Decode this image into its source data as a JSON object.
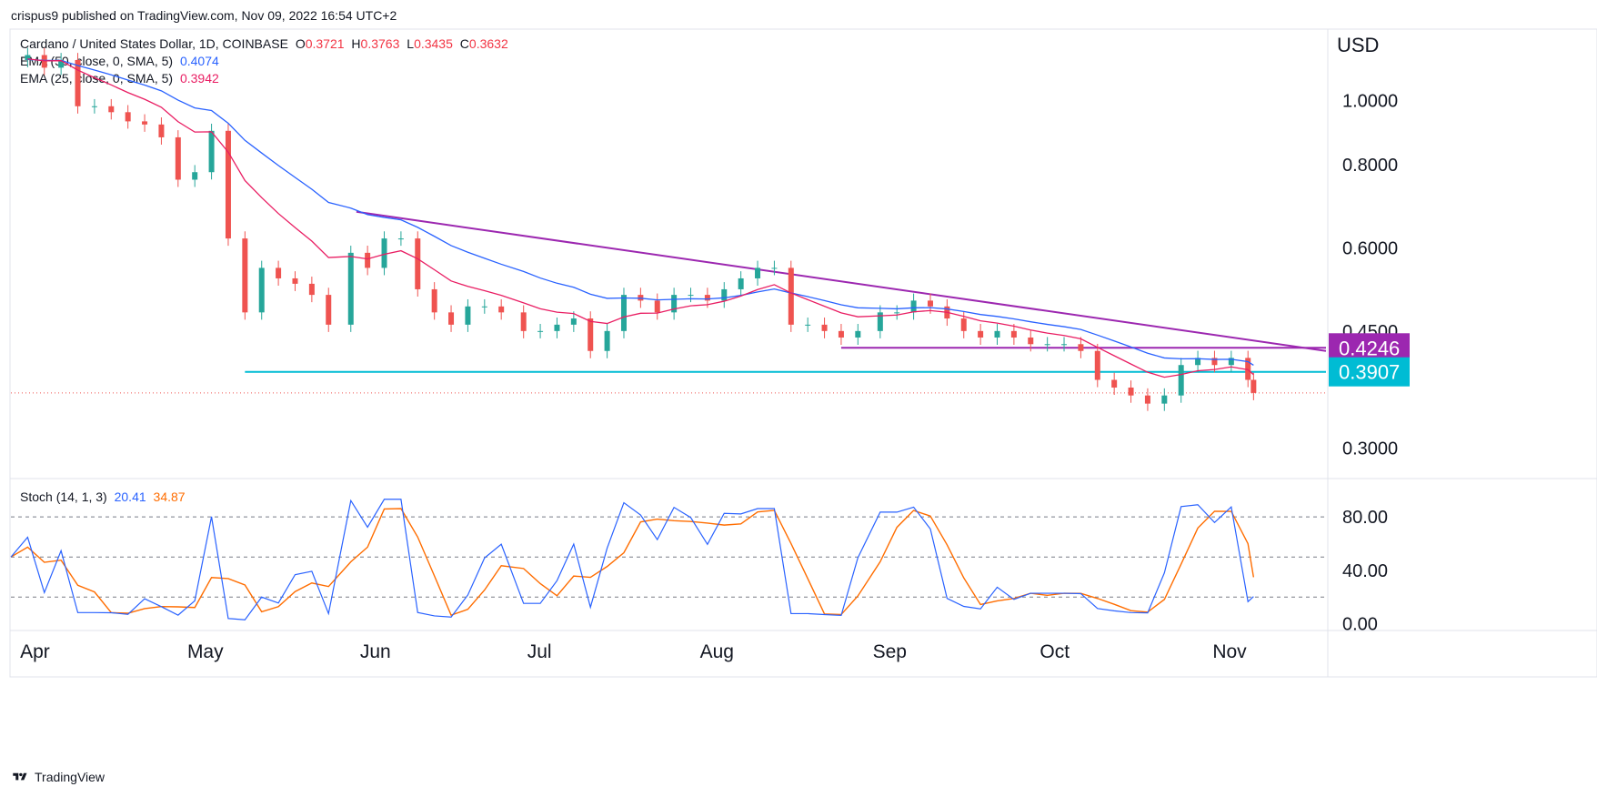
{
  "header": {
    "published": "crispus9 published on TradingView.com, Nov 09, 2022 16:54 UTC+2"
  },
  "legend": {
    "symbol": "Cardano / United States Dollar, 1D, COINBASE",
    "ohlc": {
      "o_label": "O",
      "o": "0.3721",
      "h_label": "H",
      "h": "0.3763",
      "l_label": "L",
      "l": "0.3435",
      "c_label": "C",
      "c": "0.3632"
    },
    "ema50": {
      "label": "EMA (50, close, 0, SMA, 5)",
      "value": "0.4074"
    },
    "ema25": {
      "label": "EMA (25, close, 0, SMA, 5)",
      "value": "0.3942"
    },
    "stoch": {
      "label": "Stoch (14, 1, 3)",
      "k": "20.41",
      "d": "34.87"
    }
  },
  "currency": "USD",
  "footer": {
    "brand": "TradingView"
  },
  "colors": {
    "up": "#26a69a",
    "down": "#ef5350",
    "ema50": "#2962ff",
    "ema25": "#e91e63",
    "trendline": "#9c27b0",
    "support": "#00bcd4",
    "stoch_k": "#2962ff",
    "stoch_d": "#ff6d00"
  },
  "chart_data": [
    {
      "type": "candlestick",
      "title": "Cardano / United States Dollar, 1D, COINBASE",
      "y_scale": "log",
      "ylim": [
        0.27,
        1.28
      ],
      "y_ticks": [
        {
          "label": "1.0000",
          "value": 1.0
        },
        {
          "label": "0.8000",
          "value": 0.8
        },
        {
          "label": "0.6000",
          "value": 0.6
        },
        {
          "label": "0.4500",
          "value": 0.45
        },
        {
          "label": "0.3000",
          "value": 0.3
        }
      ],
      "x_ticks": [
        "Apr",
        "May",
        "Jun",
        "Jul",
        "Aug",
        "Sep",
        "Oct",
        "Nov"
      ],
      "x_tick_dates": [
        "2022-04-01",
        "2022-05-01",
        "2022-06-01",
        "2022-07-01",
        "2022-08-01",
        "2022-09-01",
        "2022-10-01",
        "2022-11-01"
      ],
      "x_range": [
        "2022-03-31",
        "2022-11-22"
      ],
      "last_close": 0.3632,
      "price_labels": [
        {
          "label": "0.4246",
          "value": 0.4246,
          "color": "#9c27b0"
        },
        {
          "label": "0.3907",
          "value": 0.3907,
          "color": "#00bcd4"
        }
      ],
      "trendline": {
        "from": {
          "date": "2022-06-01",
          "price": 0.68
        },
        "to": {
          "date": "2022-11-22",
          "price": 0.42
        }
      },
      "horizontal_lines": [
        {
          "from": "2022-08-27",
          "to": "2022-11-22",
          "price": 0.4246,
          "color": "#9c27b0"
        },
        {
          "from": "2022-05-12",
          "to": "2022-11-22",
          "price": 0.3907,
          "color": "#00bcd4"
        }
      ],
      "closes": [
        {
          "date": "2022-03-31",
          "close": 1.15
        },
        {
          "date": "2022-04-03",
          "close": 1.17
        },
        {
          "date": "2022-04-06",
          "close": 1.12
        },
        {
          "date": "2022-04-09",
          "close": 1.15
        },
        {
          "date": "2022-04-12",
          "close": 0.98
        },
        {
          "date": "2022-04-15",
          "close": 0.98
        },
        {
          "date": "2022-04-18",
          "close": 0.96
        },
        {
          "date": "2022-04-21",
          "close": 0.93
        },
        {
          "date": "2022-04-24",
          "close": 0.92
        },
        {
          "date": "2022-04-27",
          "close": 0.88
        },
        {
          "date": "2022-04-30",
          "close": 0.76
        },
        {
          "date": "2022-05-03",
          "close": 0.78
        },
        {
          "date": "2022-05-06",
          "close": 0.9
        },
        {
          "date": "2022-05-09",
          "close": 0.62
        },
        {
          "date": "2022-05-12",
          "close": 0.48
        },
        {
          "date": "2022-05-15",
          "close": 0.56
        },
        {
          "date": "2022-05-18",
          "close": 0.54
        },
        {
          "date": "2022-05-21",
          "close": 0.53
        },
        {
          "date": "2022-05-24",
          "close": 0.51
        },
        {
          "date": "2022-05-27",
          "close": 0.46
        },
        {
          "date": "2022-05-31",
          "close": 0.59
        },
        {
          "date": "2022-06-03",
          "close": 0.56
        },
        {
          "date": "2022-06-06",
          "close": 0.62
        },
        {
          "date": "2022-06-09",
          "close": 0.62
        },
        {
          "date": "2022-06-12",
          "close": 0.52
        },
        {
          "date": "2022-06-15",
          "close": 0.48
        },
        {
          "date": "2022-06-18",
          "close": 0.46
        },
        {
          "date": "2022-06-21",
          "close": 0.49
        },
        {
          "date": "2022-06-24",
          "close": 0.49
        },
        {
          "date": "2022-06-27",
          "close": 0.48
        },
        {
          "date": "2022-07-01",
          "close": 0.45
        },
        {
          "date": "2022-07-04",
          "close": 0.45
        },
        {
          "date": "2022-07-07",
          "close": 0.46
        },
        {
          "date": "2022-07-10",
          "close": 0.47
        },
        {
          "date": "2022-07-13",
          "close": 0.42
        },
        {
          "date": "2022-07-16",
          "close": 0.45
        },
        {
          "date": "2022-07-19",
          "close": 0.51
        },
        {
          "date": "2022-07-22",
          "close": 0.5
        },
        {
          "date": "2022-07-25",
          "close": 0.48
        },
        {
          "date": "2022-07-28",
          "close": 0.51
        },
        {
          "date": "2022-07-31",
          "close": 0.51
        },
        {
          "date": "2022-08-03",
          "close": 0.5
        },
        {
          "date": "2022-08-06",
          "close": 0.52
        },
        {
          "date": "2022-08-09",
          "close": 0.54
        },
        {
          "date": "2022-08-12",
          "close": 0.56
        },
        {
          "date": "2022-08-15",
          "close": 0.56
        },
        {
          "date": "2022-08-18",
          "close": 0.46
        },
        {
          "date": "2022-08-21",
          "close": 0.46
        },
        {
          "date": "2022-08-24",
          "close": 0.45
        },
        {
          "date": "2022-08-27",
          "close": 0.44
        },
        {
          "date": "2022-08-30",
          "close": 0.45
        },
        {
          "date": "2022-09-03",
          "close": 0.48
        },
        {
          "date": "2022-09-06",
          "close": 0.48
        },
        {
          "date": "2022-09-09",
          "close": 0.5
        },
        {
          "date": "2022-09-12",
          "close": 0.49
        },
        {
          "date": "2022-09-15",
          "close": 0.47
        },
        {
          "date": "2022-09-18",
          "close": 0.45
        },
        {
          "date": "2022-09-21",
          "close": 0.44
        },
        {
          "date": "2022-09-24",
          "close": 0.45
        },
        {
          "date": "2022-09-27",
          "close": 0.44
        },
        {
          "date": "2022-09-30",
          "close": 0.43
        },
        {
          "date": "2022-10-03",
          "close": 0.43
        },
        {
          "date": "2022-10-06",
          "close": 0.43
        },
        {
          "date": "2022-10-09",
          "close": 0.42
        },
        {
          "date": "2022-10-12",
          "close": 0.38
        },
        {
          "date": "2022-10-15",
          "close": 0.37
        },
        {
          "date": "2022-10-18",
          "close": 0.36
        },
        {
          "date": "2022-10-21",
          "close": 0.35
        },
        {
          "date": "2022-10-24",
          "close": 0.36
        },
        {
          "date": "2022-10-27",
          "close": 0.4
        },
        {
          "date": "2022-10-30",
          "close": 0.41
        },
        {
          "date": "2022-11-02",
          "close": 0.4
        },
        {
          "date": "2022-11-05",
          "close": 0.41
        },
        {
          "date": "2022-11-08",
          "close": 0.38
        },
        {
          "date": "2022-11-09",
          "close": 0.3632
        }
      ]
    },
    {
      "type": "line",
      "title": "Stoch (14, 1, 3)",
      "ylim": [
        -5,
        108
      ],
      "y_ticks": [
        {
          "label": "80.00",
          "value": 80
        },
        {
          "label": "40.00",
          "value": 40
        },
        {
          "label": "0.00",
          "value": 0
        }
      ],
      "levels": [
        80,
        50,
        20
      ],
      "series": [
        {
          "name": "%K",
          "color": "#2962ff",
          "final": 20.41
        },
        {
          "name": "%D",
          "color": "#ff6d00",
          "final": 34.87
        }
      ]
    }
  ]
}
